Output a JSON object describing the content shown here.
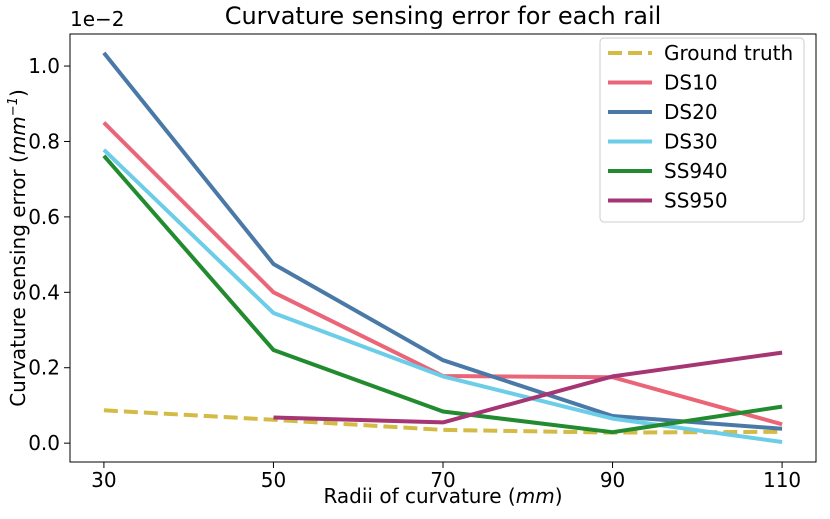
{
  "chart_data": {
    "type": "line",
    "title": "Curvature sensing error for each rail",
    "xlabel": "Radii of curvature",
    "xlabel_unit": "mm",
    "ylabel": "Curvature sensing error",
    "ylabel_unit": "mm",
    "ylabel_unit_exp": "−1",
    "y_offset_base": "1e",
    "y_offset_exp": "−2",
    "xlim": [
      26,
      114
    ],
    "ylim": [
      -0.05,
      1.085
    ],
    "x_ticks": [
      30,
      50,
      70,
      90,
      110
    ],
    "x_tick_labels": [
      "30",
      "50",
      "70",
      "90",
      "110"
    ],
    "y_ticks": [
      0.0,
      0.2,
      0.4,
      0.6,
      0.8,
      1.0
    ],
    "y_tick_labels": [
      "0.0",
      "0.2",
      "0.4",
      "0.6",
      "0.8",
      "1.0"
    ],
    "grid": false,
    "legend_position": "top-right",
    "series": [
      {
        "name": "Ground truth",
        "color": "#d4bb45",
        "dashed": true,
        "x": [
          30,
          50,
          70,
          90,
          110
        ],
        "values": [
          0.087,
          0.062,
          0.035,
          0.028,
          0.03
        ]
      },
      {
        "name": "DS10",
        "color": "#ea6577",
        "dashed": false,
        "x": [
          30,
          50,
          70,
          90,
          110
        ],
        "values": [
          0.85,
          0.4,
          0.178,
          0.175,
          0.05
        ]
      },
      {
        "name": "DS20",
        "color": "#4a79a8",
        "dashed": false,
        "x": [
          30,
          50,
          70,
          90,
          110
        ],
        "values": [
          1.035,
          0.475,
          0.22,
          0.072,
          0.038
        ]
      },
      {
        "name": "DS30",
        "color": "#6ccde8",
        "dashed": false,
        "x": [
          30,
          50,
          70,
          90,
          110
        ],
        "values": [
          0.778,
          0.345,
          0.177,
          0.065,
          0.003
        ]
      },
      {
        "name": "SS940",
        "color": "#228b30",
        "dashed": false,
        "x": [
          30,
          50,
          70,
          90,
          110
        ],
        "values": [
          0.762,
          0.247,
          0.084,
          0.029,
          0.097
        ]
      },
      {
        "name": "SS950",
        "color": "#a63573",
        "dashed": false,
        "x": [
          50,
          70,
          90,
          110
        ],
        "values": [
          0.068,
          0.055,
          0.177,
          0.24
        ]
      }
    ]
  }
}
